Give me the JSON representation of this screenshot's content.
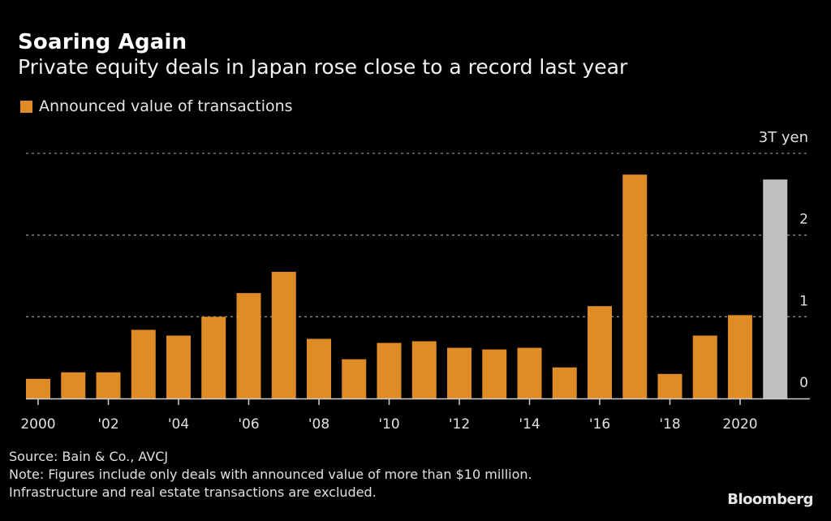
{
  "header": {
    "title": "Soaring Again",
    "subtitle": "Private equity deals in Japan rose close to a record last year"
  },
  "legend": {
    "label": "Announced value of transactions",
    "color": "#e08c26"
  },
  "footer": {
    "source": "Source: Bain & Co., AVCJ",
    "note_line1": "Note: Figures include only deals with announced value of more than $10 million.",
    "note_line2": "Infrastructure and real estate transactions are excluded."
  },
  "brand": "Bloomberg",
  "chart_data": {
    "type": "bar",
    "title": "Soaring Again",
    "subtitle": "Private equity deals in Japan rose close to a record last year",
    "xlabel": "",
    "ylabel": "",
    "unit_label": "3T yen",
    "ylim": [
      0,
      3
    ],
    "yticks": [
      0,
      1,
      2,
      3
    ],
    "ytick_labels": [
      "0",
      "1",
      "2",
      "3T yen"
    ],
    "y_axis_position": "right",
    "grid": true,
    "legend_position": "top-left",
    "categories": [
      "2000",
      "2001",
      "2002",
      "2003",
      "2004",
      "2005",
      "2006",
      "2007",
      "2008",
      "2009",
      "2010",
      "2011",
      "2012",
      "2013",
      "2014",
      "2015",
      "2016",
      "2017",
      "2018",
      "2019",
      "2020",
      "2021"
    ],
    "xtick_labels": [
      {
        "index": 0,
        "label": "2000"
      },
      {
        "index": 2,
        "label": "'02"
      },
      {
        "index": 4,
        "label": "'04"
      },
      {
        "index": 6,
        "label": "'06"
      },
      {
        "index": 8,
        "label": "'08"
      },
      {
        "index": 10,
        "label": "'10"
      },
      {
        "index": 12,
        "label": "'12"
      },
      {
        "index": 14,
        "label": "'14"
      },
      {
        "index": 16,
        "label": "'16"
      },
      {
        "index": 18,
        "label": "'18"
      },
      {
        "index": 20,
        "label": "2020"
      }
    ],
    "series": [
      {
        "name": "Announced value of transactions",
        "color": "#e08c26",
        "highlight_color": "#c0c0c0",
        "highlight_index": 21,
        "values": [
          0.24,
          0.32,
          0.32,
          0.84,
          0.77,
          1.0,
          1.29,
          1.55,
          0.73,
          0.48,
          0.68,
          0.7,
          0.62,
          0.6,
          0.62,
          0.38,
          1.13,
          2.74,
          0.3,
          0.77,
          1.02,
          2.68
        ]
      }
    ]
  }
}
